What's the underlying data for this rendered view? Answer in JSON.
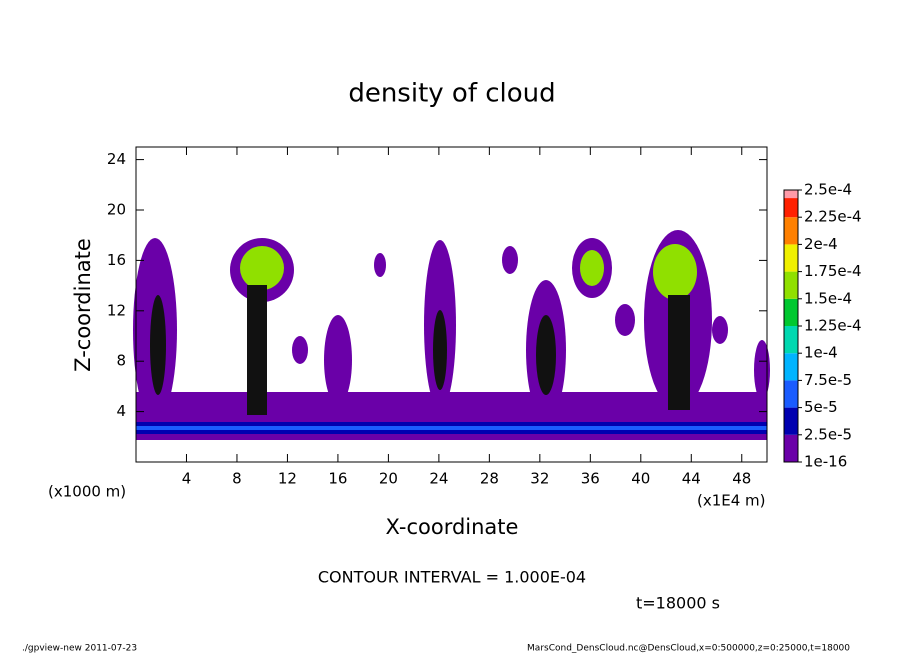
{
  "chart_data": {
    "type": "contour",
    "title": "density of cloud",
    "x_label": "X-coordinate",
    "y_label": "Z-coordinate",
    "x_unit": "(x1E4 m)",
    "y_unit": "(x1000 m)",
    "xlim": [
      0,
      50
    ],
    "xticks": [
      4,
      8,
      12,
      16,
      20,
      24,
      28,
      32,
      36,
      40,
      44,
      48
    ],
    "ylim": [
      0,
      25
    ],
    "yticks": [
      4,
      8,
      12,
      16,
      20,
      24
    ],
    "levels": [
      {
        "value": 1e-16,
        "label": "1e-16"
      },
      {
        "value": 2.5e-05,
        "label": "2.5e-5"
      },
      {
        "value": 5e-05,
        "label": "5e-5"
      },
      {
        "value": 7.5e-05,
        "label": "7.5e-5"
      },
      {
        "value": 0.0001,
        "label": "1e-4"
      },
      {
        "value": 0.000125,
        "label": "1.25e-4"
      },
      {
        "value": 0.00015,
        "label": "1.5e-4"
      },
      {
        "value": 0.000175,
        "label": "1.75e-4"
      },
      {
        "value": 0.0002,
        "label": "2e-4"
      },
      {
        "value": 0.000225,
        "label": "2.25e-4"
      },
      {
        "value": 0.00025,
        "label": "2.5e-4"
      }
    ],
    "level_colors": [
      "#6a00a8",
      "#0000b0",
      "#1a5cff",
      "#00b4ff",
      "#00d8b0",
      "#00c830",
      "#90e000",
      "#f0f000",
      "#ff8000",
      "#ff2000"
    ],
    "top_color": "#ff9aa8",
    "annotations": [
      "CONTOUR INTERVAL = 1.000E-04",
      "t=18000 s"
    ],
    "footer_left": "./gpview-new   2011-07-23",
    "footer_right": "MarsCond_DensCloud.nc@DensCloud,x=0:500000,z=0:25000,t=18000"
  }
}
